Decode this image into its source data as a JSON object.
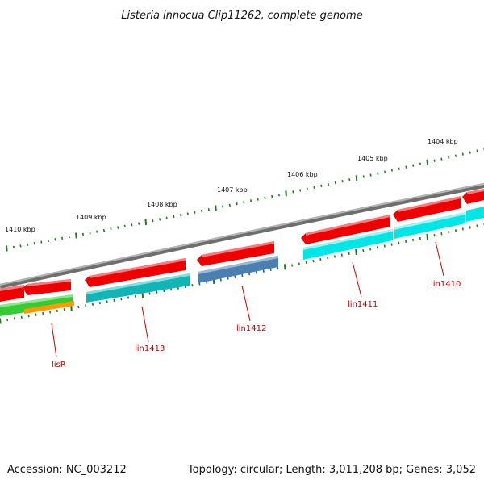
{
  "title": "Listeria innocua Clip11262, complete genome",
  "footer": {
    "accession": "Accession: NC_003212",
    "summary": "Topology: circular; Length: 3,011,208 bp; Genes: 3,052"
  },
  "colors": {
    "backbone": "#8a8a8a",
    "tick": "#1e7a1e",
    "label": "#cc0000",
    "cds": "#ee0000",
    "cyan": "#00e5e5",
    "teal": "#12b5b5",
    "steelblue": "#4a7fb0",
    "green": "#33cc33",
    "orange": "#ff9900"
  },
  "axis_labels": [
    "1410 kbp",
    "1409 kbp",
    "1408 kbp",
    "1407 kbp",
    "1406 kbp",
    "1405 kbp",
    "1404 kbp"
  ],
  "genes": [
    "lisR",
    "lin1413",
    "lin1412",
    "lin1411",
    "lin1410"
  ]
}
